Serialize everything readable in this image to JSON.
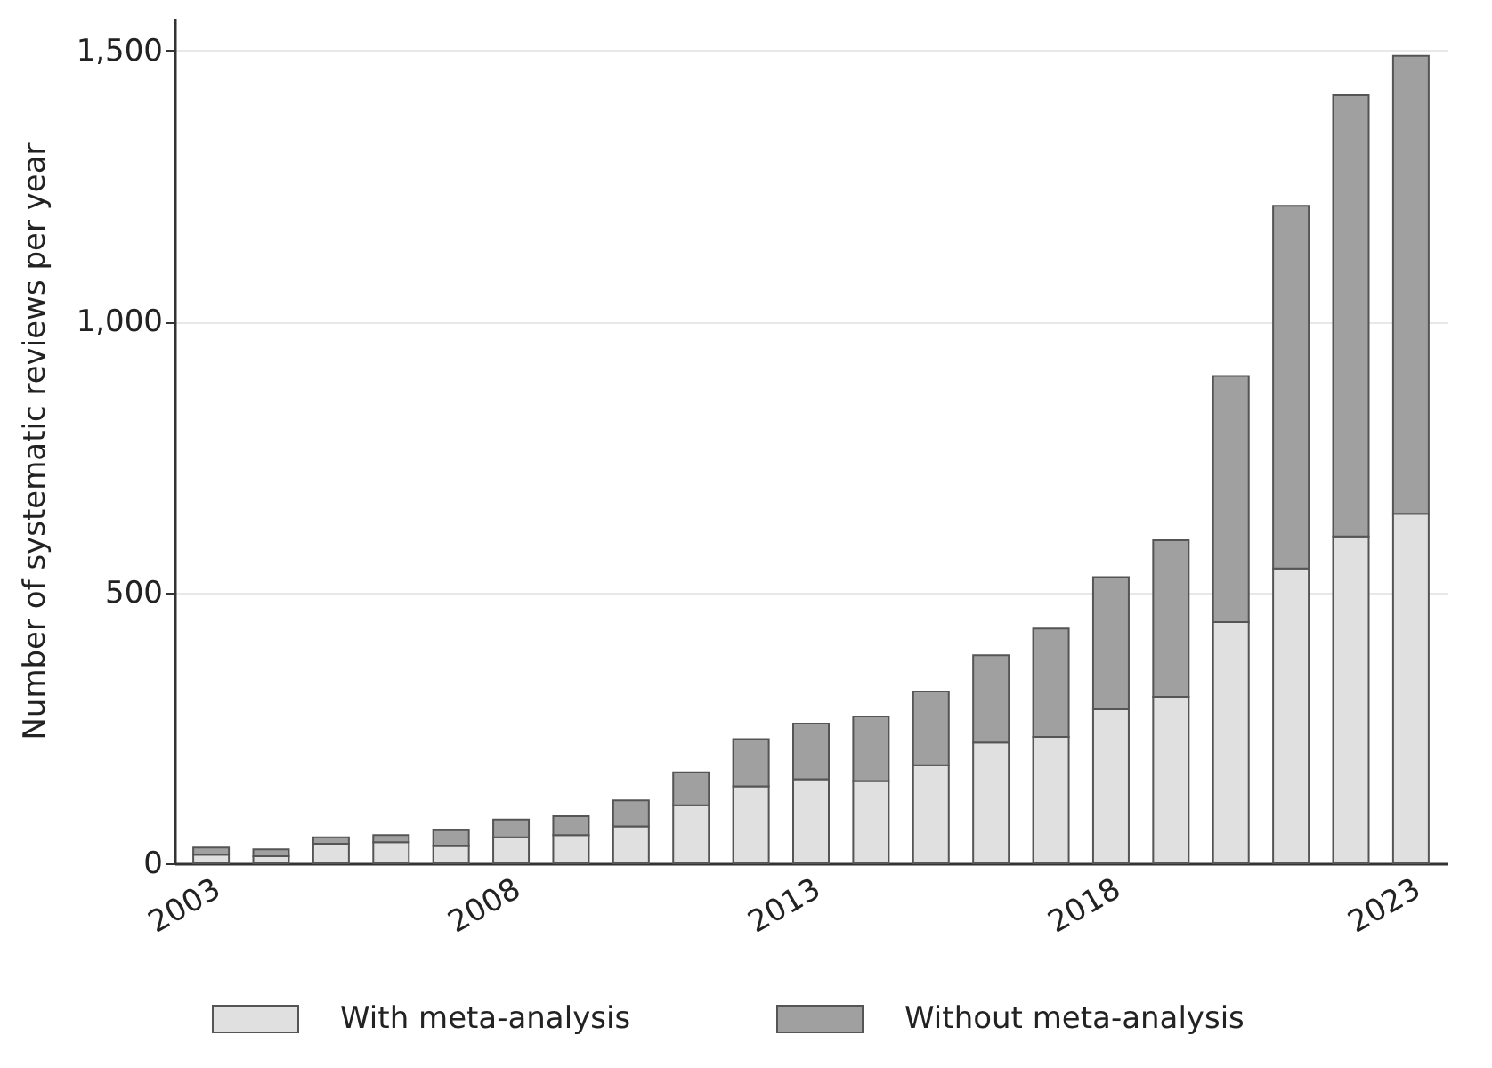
{
  "chart_data": {
    "type": "bar",
    "stacked": true,
    "ylabel": "Number of systematic reviews per year",
    "categories": [
      "2003",
      null,
      null,
      null,
      null,
      "2008",
      null,
      null,
      null,
      null,
      "2013",
      null,
      null,
      null,
      null,
      "2018",
      null,
      null,
      null,
      null,
      "2023"
    ],
    "series": [
      {
        "name": "With meta-analysis",
        "color": "#e0e0e0",
        "values": [
          16,
          13,
          36,
          39,
          32,
          48,
          52,
          68,
          107,
          142,
          155,
          152,
          181,
          223,
          233,
          284,
          307,
          445,
          544,
          603,
          645
        ]
      },
      {
        "name": "Without meta-analysis",
        "color": "#a0a0a0",
        "values": [
          13,
          13,
          12,
          13,
          29,
          33,
          35,
          48,
          61,
          87,
          103,
          119,
          136,
          161,
          200,
          244,
          289,
          454,
          669,
          814,
          845
        ]
      }
    ],
    "ylim": [
      0,
      1560
    ],
    "yticks": [
      0,
      500,
      {
        "value": 1000,
        "label": "1,000"
      },
      {
        "value": 1500,
        "label": "1,500"
      }
    ],
    "grid": "y",
    "legend": "bottom"
  }
}
